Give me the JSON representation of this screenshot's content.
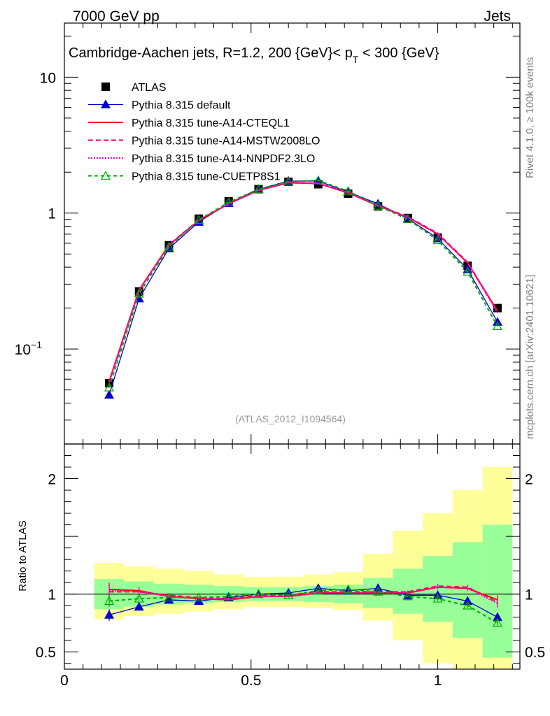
{
  "header": {
    "left": "7000 GeV pp",
    "right": "Jets"
  },
  "side_labels": {
    "rivet": "Rivet 4.1.0, ≥ 100k events",
    "mcplots": "mcplots.cern.ch [arXiv:2401.10621]"
  },
  "chart_data": {
    "type": "line",
    "title_main": "Cambridge-Aachen jets, R=1.2,  200 {GeV}< p",
    "title_sub": "T",
    "title_end": " < 300 {GeV}",
    "watermark": "(ATLAS_2012_I1094564)",
    "ratio_ylabel": "Ratio to ATLAS",
    "x": [
      0.12,
      0.2,
      0.28,
      0.36,
      0.44,
      0.52,
      0.6,
      0.68,
      0.76,
      0.84,
      0.92,
      1.0,
      1.08,
      1.16
    ],
    "x_edges": [
      0.08,
      0.16,
      0.24,
      0.32,
      0.4,
      0.48,
      0.56,
      0.64,
      0.72,
      0.8,
      0.88,
      0.96,
      1.04,
      1.12,
      1.2
    ],
    "xlim": [
      0,
      1.22
    ],
    "ylim_main": [
      0.02,
      25
    ],
    "ylim_ratio": [
      0.35,
      2.3
    ],
    "x_tick_labels": [
      {
        "v": 0,
        "t": "0"
      },
      {
        "v": 0.5,
        "t": "0.5"
      },
      {
        "v": 1,
        "t": "1"
      }
    ],
    "y_tick_labels_main": [
      {
        "v": 0.1,
        "t": "10",
        "sup": "−1"
      },
      {
        "v": 1,
        "t": "1",
        "sup": ""
      },
      {
        "v": 10,
        "t": "10",
        "sup": ""
      }
    ],
    "y_tick_labels_ratio": [
      {
        "v": 0.5,
        "t": "0.5"
      },
      {
        "v": 1,
        "t": "1"
      },
      {
        "v": 2,
        "t": "2"
      }
    ],
    "data": {
      "name": "ATLAS",
      "values": [
        0.056,
        0.265,
        0.58,
        0.91,
        1.22,
        1.5,
        1.7,
        1.63,
        1.39,
        1.12,
        0.92,
        0.66,
        0.41,
        0.2
      ],
      "band_green": [
        [
          0.87,
          1.13
        ],
        [
          0.89,
          1.11
        ],
        [
          0.91,
          1.09
        ],
        [
          0.92,
          1.08
        ],
        [
          0.93,
          1.07
        ],
        [
          0.94,
          1.06
        ],
        [
          0.94,
          1.06
        ],
        [
          0.93,
          1.07
        ],
        [
          0.92,
          1.08
        ],
        [
          0.88,
          1.14
        ],
        [
          0.83,
          1.22
        ],
        [
          0.76,
          1.33
        ],
        [
          0.62,
          1.45
        ],
        [
          0.45,
          1.6
        ]
      ],
      "band_yellow": [
        [
          0.78,
          1.27
        ],
        [
          0.81,
          1.24
        ],
        [
          0.83,
          1.22
        ],
        [
          0.85,
          1.2
        ],
        [
          0.87,
          1.17
        ],
        [
          0.89,
          1.15
        ],
        [
          0.89,
          1.15
        ],
        [
          0.88,
          1.17
        ],
        [
          0.86,
          1.19
        ],
        [
          0.77,
          1.35
        ],
        [
          0.6,
          1.55
        ],
        [
          0.4,
          1.7
        ],
        [
          0.33,
          1.9
        ],
        [
          0.3,
          2.1
        ]
      ]
    },
    "series": [
      {
        "name": "Pythia 8.315 default",
        "color": "#0000cc",
        "dash": "",
        "marker": "tri-filled",
        "values": [
          0.046,
          0.235,
          0.55,
          0.86,
          1.18,
          1.5,
          1.72,
          1.72,
          1.43,
          1.17,
          0.91,
          0.65,
          0.385,
          0.158
        ],
        "ratio": [
          0.82,
          0.89,
          0.95,
          0.94,
          0.97,
          1.0,
          1.01,
          1.05,
          1.03,
          1.05,
          0.99,
          0.99,
          0.94,
          0.8
        ],
        "ratio_err": [
          0.05,
          0.02,
          0.01,
          0.01,
          0.01,
          0.01,
          0.01,
          0.01,
          0.01,
          0.01,
          0.01,
          0.01,
          0.02,
          0.03
        ]
      },
      {
        "name": "Pythia 8.315 tune-A14-CTEQL1",
        "color": "#ff0000",
        "dash": "",
        "marker": "none",
        "values": [
          0.058,
          0.272,
          0.58,
          0.88,
          1.17,
          1.47,
          1.67,
          1.65,
          1.41,
          1.13,
          0.93,
          0.7,
          0.43,
          0.19
        ],
        "ratio": [
          1.04,
          1.03,
          0.98,
          0.96,
          0.95,
          0.98,
          0.98,
          1.01,
          1.01,
          1.01,
          1.01,
          1.06,
          1.05,
          0.95
        ],
        "ratio_err": [
          0.06,
          0.03,
          0.01,
          0.01,
          0.01,
          0.01,
          0.01,
          0.01,
          0.01,
          0.01,
          0.01,
          0.02,
          0.02,
          0.04
        ]
      },
      {
        "name": "Pythia 8.315 tune-A14-MSTW2008LO",
        "color": "#ff0066",
        "dash": "7,4",
        "marker": "none",
        "values": [
          0.057,
          0.27,
          0.585,
          0.89,
          1.17,
          1.47,
          1.68,
          1.66,
          1.42,
          1.14,
          0.94,
          0.71,
          0.435,
          0.19
        ],
        "ratio": [
          1.02,
          1.02,
          0.99,
          0.97,
          0.96,
          0.99,
          0.99,
          1.02,
          1.02,
          1.02,
          1.02,
          1.07,
          1.06,
          0.93
        ],
        "ratio_err": [
          0.06,
          0.03,
          0.01,
          0.01,
          0.01,
          0.01,
          0.01,
          0.01,
          0.01,
          0.01,
          0.01,
          0.02,
          0.02,
          0.04
        ]
      },
      {
        "name": "Pythia 8.315 tune-A14-NNPDF2.3LO",
        "color": "#ff00cc",
        "dash": "2,2",
        "marker": "none",
        "values": [
          0.057,
          0.268,
          0.58,
          0.89,
          1.17,
          1.47,
          1.68,
          1.65,
          1.41,
          1.13,
          0.93,
          0.7,
          0.43,
          0.185
        ],
        "ratio": [
          1.03,
          1.02,
          0.98,
          0.96,
          0.96,
          0.98,
          0.98,
          1.01,
          1.01,
          1.01,
          1.01,
          1.06,
          1.05,
          0.92
        ],
        "ratio_err": [
          0.06,
          0.03,
          0.01,
          0.01,
          0.01,
          0.01,
          0.01,
          0.01,
          0.01,
          0.01,
          0.01,
          0.02,
          0.02,
          0.04
        ]
      },
      {
        "name": "Pythia 8.315 tune-CUETP8S1",
        "color": "#00aa00",
        "dash": "5,4",
        "marker": "tri-open",
        "values": [
          0.052,
          0.255,
          0.565,
          0.89,
          1.2,
          1.5,
          1.7,
          1.74,
          1.45,
          1.13,
          0.9,
          0.63,
          0.37,
          0.147
        ],
        "ratio": [
          0.94,
          0.96,
          0.97,
          0.97,
          0.98,
          1.0,
          0.99,
          1.03,
          1.04,
          1.02,
          0.98,
          0.96,
          0.9,
          0.75
        ],
        "ratio_err": [
          0.05,
          0.02,
          0.01,
          0.01,
          0.01,
          0.01,
          0.01,
          0.01,
          0.01,
          0.01,
          0.01,
          0.02,
          0.02,
          0.03
        ]
      }
    ]
  }
}
